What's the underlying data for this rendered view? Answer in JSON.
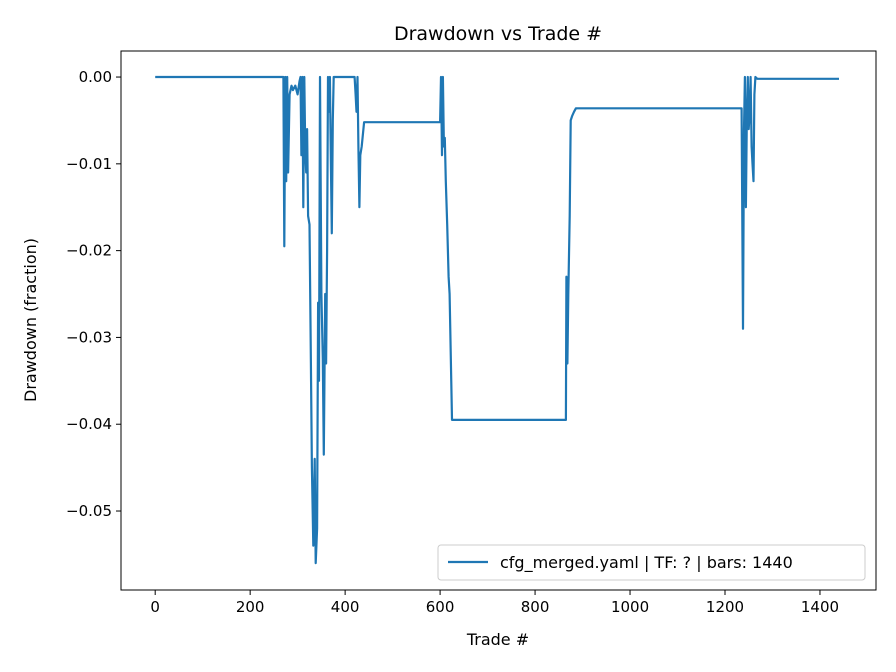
{
  "chart_data": {
    "type": "line",
    "title": "Drawdown vs Trade #",
    "xlabel": "Trade #",
    "ylabel": "Drawdown (fraction)",
    "xlim": [
      -72,
      1518
    ],
    "ylim": [
      -0.0591,
      0.003
    ],
    "xticks": [
      0,
      200,
      400,
      600,
      800,
      1000,
      1200,
      1400
    ],
    "xtick_labels": [
      "0",
      "200",
      "400",
      "600",
      "800",
      "1000",
      "1200",
      "1400"
    ],
    "yticks": [
      0,
      -0.01,
      -0.02,
      -0.03,
      -0.04,
      -0.05
    ],
    "ytick_labels": [
      "0.00",
      "−0.01",
      "−0.02",
      "−0.03",
      "−0.04",
      "−0.05"
    ],
    "grid": false,
    "legend_position": "lower-right",
    "series": [
      {
        "name": "cfg_merged.yaml | TF: ? | bars: 1440",
        "color": "#1f77b4",
        "x": [
          0,
          270,
          272,
          274,
          276,
          278,
          280,
          283,
          287,
          290,
          295,
          300,
          304,
          306,
          308,
          310,
          312,
          314,
          316,
          318,
          320,
          322,
          325,
          328,
          330,
          333,
          336,
          338,
          341,
          343,
          345,
          347,
          350,
          353,
          355,
          358,
          360,
          362,
          364,
          366,
          368,
          370,
          372,
          374,
          376,
          380,
          420,
          422,
          424,
          426,
          428,
          430,
          432,
          435,
          440,
          600,
          602,
          604,
          606,
          608,
          610,
          612,
          615,
          618,
          620,
          625,
          865,
          866,
          868,
          870,
          873,
          875,
          878,
          882,
          886,
          1235,
          1238,
          1240,
          1242,
          1244,
          1246,
          1248,
          1250,
          1252,
          1254,
          1256,
          1258,
          1260,
          1262,
          1264,
          1268,
          1440
        ],
        "y": [
          0,
          0,
          -0.0195,
          0,
          -0.012,
          0,
          -0.011,
          -0.002,
          -0.001,
          -0.0015,
          -0.001,
          -0.002,
          -0.0005,
          0,
          -0.009,
          0,
          -0.015,
          0,
          -0.008,
          -0.011,
          -0.006,
          -0.016,
          -0.017,
          -0.033,
          -0.045,
          -0.054,
          -0.044,
          -0.056,
          -0.052,
          -0.026,
          -0.035,
          0,
          -0.025,
          -0.0325,
          -0.0435,
          -0.025,
          -0.033,
          -0.02,
          0,
          -0.004,
          0,
          -0.01,
          -0.018,
          -0.005,
          0,
          0,
          0,
          -0.002,
          -0.004,
          0,
          -0.008,
          -0.015,
          -0.009,
          -0.008,
          -0.0052,
          -0.0052,
          0,
          -0.009,
          0,
          -0.008,
          -0.007,
          -0.012,
          -0.017,
          -0.023,
          -0.025,
          -0.0395,
          -0.0395,
          -0.023,
          -0.033,
          -0.025,
          -0.016,
          -0.005,
          -0.0045,
          -0.004,
          -0.0036,
          -0.0036,
          -0.029,
          -0.006,
          0,
          -0.015,
          -0.005,
          0,
          -0.006,
          -0.004,
          0,
          -0.008,
          -0.01,
          -0.012,
          -0.002,
          0,
          -0.0002,
          -0.0002
        ]
      }
    ]
  }
}
